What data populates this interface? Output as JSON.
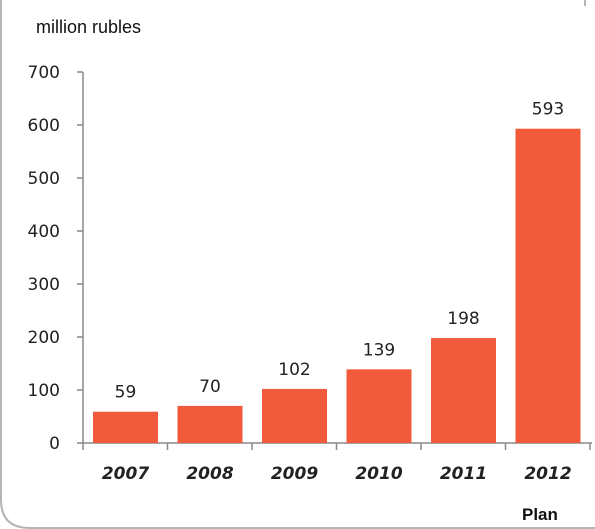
{
  "chart_data": {
    "type": "bar",
    "ylabel": "million rubles",
    "categories": [
      "2007",
      "2008",
      "2009",
      "2010",
      "2011",
      "2012"
    ],
    "values": [
      59,
      70,
      102,
      139,
      198,
      593
    ],
    "ylim": [
      0,
      700
    ],
    "yticks": [
      "0",
      "100",
      "200",
      "300",
      "400",
      "500",
      "600",
      "700"
    ],
    "grid": false,
    "note": "Plan",
    "bar_color": "#f15a3a"
  }
}
